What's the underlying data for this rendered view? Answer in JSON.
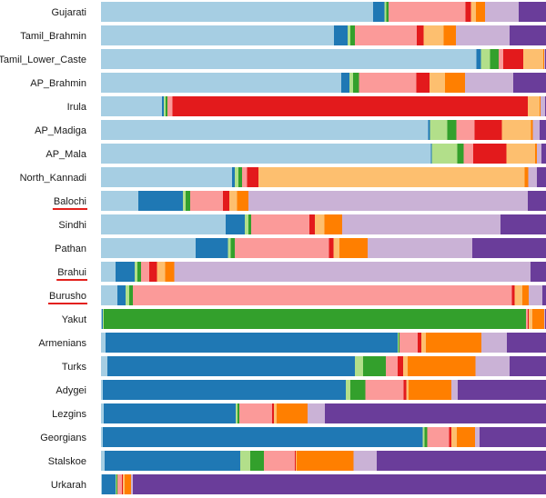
{
  "chart_data": {
    "type": "bar",
    "orientation": "horizontal",
    "stacked": true,
    "xlim": [
      0,
      1
    ],
    "categories": [
      "Gujarati",
      "Tamil_Brahmin",
      "Tamil_Lower_Caste",
      "AP_Brahmin",
      "Irula",
      "AP_Madiga",
      "AP_Mala",
      "North_Kannadi",
      "Balochi",
      "Sindhi",
      "Pathan",
      "Brahui",
      "Burusho",
      "Yakut",
      "Armenians",
      "Turks",
      "Adygei",
      "Lezgins",
      "Georgians",
      "Stalskoe",
      "Urkarah"
    ],
    "underlined": [
      false,
      false,
      false,
      false,
      false,
      false,
      false,
      false,
      true,
      false,
      false,
      true,
      true,
      false,
      false,
      false,
      false,
      false,
      false,
      false,
      false
    ],
    "underline_color": "#e3201c",
    "series": [
      {
        "color": "#a6cee3",
        "values": [
          0.611,
          0.524,
          0.843,
          0.54,
          0.137,
          0.734,
          0.74,
          0.294,
          0.084,
          0.28,
          0.213,
          0.033,
          0.037,
          0.002,
          0.01,
          0.014,
          0.004,
          0.006,
          0.004,
          0.008,
          0.002
        ]
      },
      {
        "color": "#1f78b4",
        "values": [
          0.025,
          0.031,
          0.01,
          0.018,
          0.004,
          0.004,
          0.002,
          0.006,
          0.1,
          0.043,
          0.072,
          0.043,
          0.018,
          0.002,
          0.656,
          0.556,
          0.546,
          0.297,
          0.718,
          0.305,
          0.031
        ]
      },
      {
        "color": "#b2df8a",
        "values": [
          0.004,
          0.006,
          0.02,
          0.008,
          0.004,
          0.039,
          0.057,
          0.008,
          0.006,
          0.008,
          0.006,
          0.006,
          0.008,
          0.002,
          0.002,
          0.018,
          0.01,
          0.004,
          0.004,
          0.022,
          0.002
        ]
      },
      {
        "color": "#33a02c",
        "values": [
          0.006,
          0.01,
          0.02,
          0.014,
          0.004,
          0.02,
          0.014,
          0.008,
          0.01,
          0.006,
          0.01,
          0.008,
          0.008,
          0.949,
          0.002,
          0.051,
          0.033,
          0.004,
          0.006,
          0.031,
          0.002
        ]
      },
      {
        "color": "#fb9a99",
        "values": [
          0.172,
          0.139,
          0.01,
          0.129,
          0.012,
          0.041,
          0.022,
          0.012,
          0.074,
          0.131,
          0.211,
          0.018,
          0.851,
          0.004,
          0.041,
          0.027,
          0.086,
          0.074,
          0.049,
          0.07,
          0.01
        ]
      },
      {
        "color": "#e31a1c",
        "values": [
          0.012,
          0.016,
          0.045,
          0.029,
          0.798,
          0.061,
          0.074,
          0.025,
          0.014,
          0.012,
          0.01,
          0.018,
          0.006,
          0.002,
          0.008,
          0.012,
          0.006,
          0.004,
          0.006,
          0.002,
          0.002
        ]
      },
      {
        "color": "#fdbf6f",
        "values": [
          0.012,
          0.045,
          0.045,
          0.035,
          0.027,
          0.065,
          0.065,
          0.597,
          0.018,
          0.022,
          0.014,
          0.018,
          0.018,
          0.008,
          0.01,
          0.01,
          0.006,
          0.006,
          0.012,
          0.002,
          0.004
        ]
      },
      {
        "color": "#ff7f00",
        "values": [
          0.02,
          0.027,
          0.002,
          0.045,
          0.002,
          0.004,
          0.004,
          0.008,
          0.025,
          0.039,
          0.063,
          0.02,
          0.014,
          0.027,
          0.125,
          0.153,
          0.096,
          0.07,
          0.041,
          0.127,
          0.014
        ]
      },
      {
        "color": "#cab2d6",
        "values": [
          0.076,
          0.121,
          0.002,
          0.108,
          0.01,
          0.016,
          0.01,
          0.02,
          0.628,
          0.356,
          0.235,
          0.8,
          0.031,
          0.002,
          0.057,
          0.076,
          0.014,
          0.039,
          0.01,
          0.053,
          0.004
        ]
      },
      {
        "color": "#6a3d9a",
        "values": [
          0.061,
          0.082,
          0.002,
          0.074,
          0.002,
          0.014,
          0.01,
          0.02,
          0.041,
          0.102,
          0.166,
          0.035,
          0.008,
          0.002,
          0.088,
          0.082,
          0.198,
          0.497,
          0.149,
          0.38,
          0.928
        ]
      }
    ]
  }
}
